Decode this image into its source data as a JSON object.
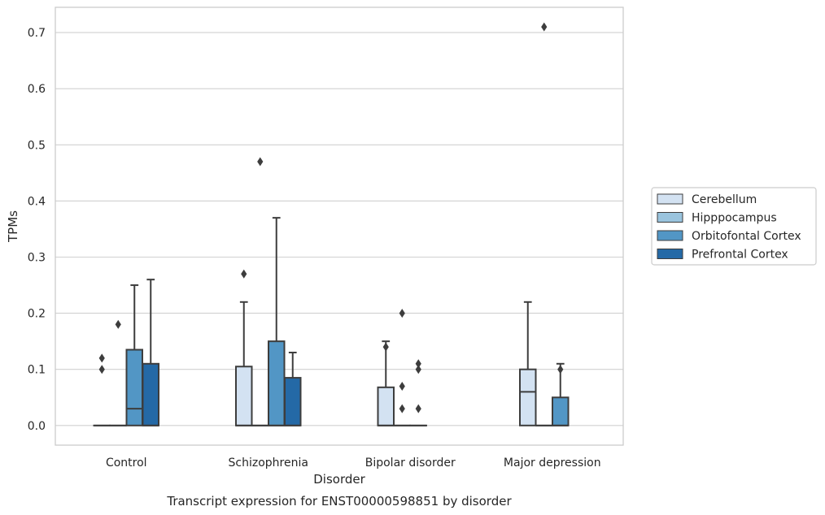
{
  "caption": "Transcript expression for ENST00000598851 by disorder",
  "chart_data": {
    "type": "box",
    "title": "",
    "xlabel": "Disorder",
    "ylabel": "TPMs",
    "ylim": [
      -0.035,
      0.745
    ],
    "yticks": [
      0.0,
      0.1,
      0.2,
      0.3,
      0.4,
      0.5,
      0.6,
      0.7
    ],
    "ytick_labels": [
      "0.0",
      "0.1",
      "0.2",
      "0.3",
      "0.4",
      "0.5",
      "0.6",
      "0.7"
    ],
    "grid": "horizontal",
    "legend_position": "right",
    "categories": [
      "Control",
      "Schizophrenia",
      "Bipolar disorder",
      "Major depression"
    ],
    "series": [
      {
        "name": "Cerebellum",
        "color": "#d3e2f2",
        "boxes": [
          {
            "q1": 0,
            "median": 0,
            "q3": 0,
            "whisker_low": 0,
            "whisker_high": 0,
            "outliers": [
              0.1,
              0.12
            ]
          },
          {
            "q1": 0,
            "median": 0,
            "q3": 0.105,
            "whisker_low": 0,
            "whisker_high": 0.22,
            "outliers": [
              0.27
            ]
          },
          {
            "q1": 0,
            "median": 0,
            "q3": 0.068,
            "whisker_low": 0,
            "whisker_high": 0.15,
            "outliers": [
              0.14
            ]
          },
          {
            "q1": 0,
            "median": 0.06,
            "q3": 0.1,
            "whisker_low": 0,
            "whisker_high": 0.22,
            "outliers": []
          }
        ]
      },
      {
        "name": "Hipppocampus",
        "color": "#9ac4de",
        "boxes": [
          {
            "q1": 0,
            "median": 0,
            "q3": 0,
            "whisker_low": 0,
            "whisker_high": 0,
            "outliers": [
              0.18
            ]
          },
          {
            "q1": 0,
            "median": 0,
            "q3": 0,
            "whisker_low": 0,
            "whisker_high": 0,
            "outliers": [
              0.47
            ]
          },
          {
            "q1": 0,
            "median": 0,
            "q3": 0,
            "whisker_low": 0,
            "whisker_high": 0,
            "outliers": [
              0.03,
              0.07,
              0.2
            ]
          },
          {
            "q1": 0,
            "median": 0,
            "q3": 0,
            "whisker_low": 0,
            "whisker_high": 0,
            "outliers": [
              0.71
            ]
          }
        ]
      },
      {
        "name": "Orbitofontal Cortex",
        "color": "#5296c5",
        "boxes": [
          {
            "q1": 0,
            "median": 0.03,
            "q3": 0.135,
            "whisker_low": 0,
            "whisker_high": 0.25,
            "outliers": []
          },
          {
            "q1": 0,
            "median": 0,
            "q3": 0.15,
            "whisker_low": 0,
            "whisker_high": 0.37,
            "outliers": []
          },
          {
            "q1": 0,
            "median": 0,
            "q3": 0,
            "whisker_low": 0,
            "whisker_high": 0,
            "outliers": [
              0.03,
              0.1,
              0.11
            ]
          },
          {
            "q1": 0,
            "median": 0,
            "q3": 0.05,
            "whisker_low": 0,
            "whisker_high": 0.11,
            "outliers": [
              0.1
            ]
          }
        ]
      },
      {
        "name": "Prefrontal Cortex",
        "color": "#2469a6",
        "boxes": [
          {
            "q1": 0,
            "median": 0,
            "q3": 0.11,
            "whisker_low": 0,
            "whisker_high": 0.26,
            "outliers": []
          },
          {
            "q1": 0,
            "median": 0,
            "q3": 0.085,
            "whisker_low": 0,
            "whisker_high": 0.13,
            "outliers": []
          },
          null,
          null
        ]
      }
    ]
  }
}
